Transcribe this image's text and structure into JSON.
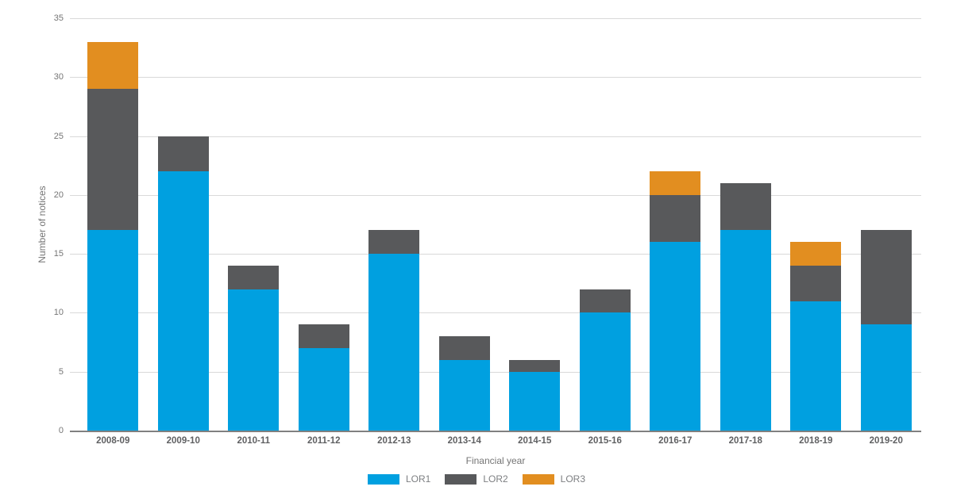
{
  "chart_data": {
    "type": "bar",
    "stacked": true,
    "title": "",
    "xlabel": "Financial year",
    "ylabel": "Number of notices",
    "categories": [
      "2008-09",
      "2009-10",
      "2010-11",
      "2011-12",
      "2012-13",
      "2013-14",
      "2014-15",
      "2015-16",
      "2016-17",
      "2017-18",
      "2018-19",
      "2019-20"
    ],
    "series": [
      {
        "name": "LOR1",
        "color": "#00a0e0",
        "values": [
          17,
          22,
          12,
          7,
          15,
          6,
          5,
          10,
          16,
          17,
          11,
          9
        ]
      },
      {
        "name": "LOR2",
        "color": "#58595b",
        "values": [
          12,
          3,
          2,
          2,
          2,
          2,
          1,
          2,
          4,
          4,
          3,
          8
        ]
      },
      {
        "name": "LOR3",
        "color": "#e28e20",
        "values": [
          4,
          0,
          0,
          0,
          0,
          0,
          0,
          0,
          2,
          0,
          2,
          0
        ]
      }
    ],
    "ylim": [
      0,
      35
    ],
    "yticks": [
      0,
      5,
      10,
      15,
      20,
      25,
      30,
      35
    ],
    "grid": true,
    "legend_position": "bottom",
    "gridline_color": "#d9d9d9",
    "axis_line_color": "#808080",
    "y_tick_label_color": "#757575",
    "x_tick_label_color": "#5f6062",
    "legend_label_color": "#7d7f82"
  }
}
